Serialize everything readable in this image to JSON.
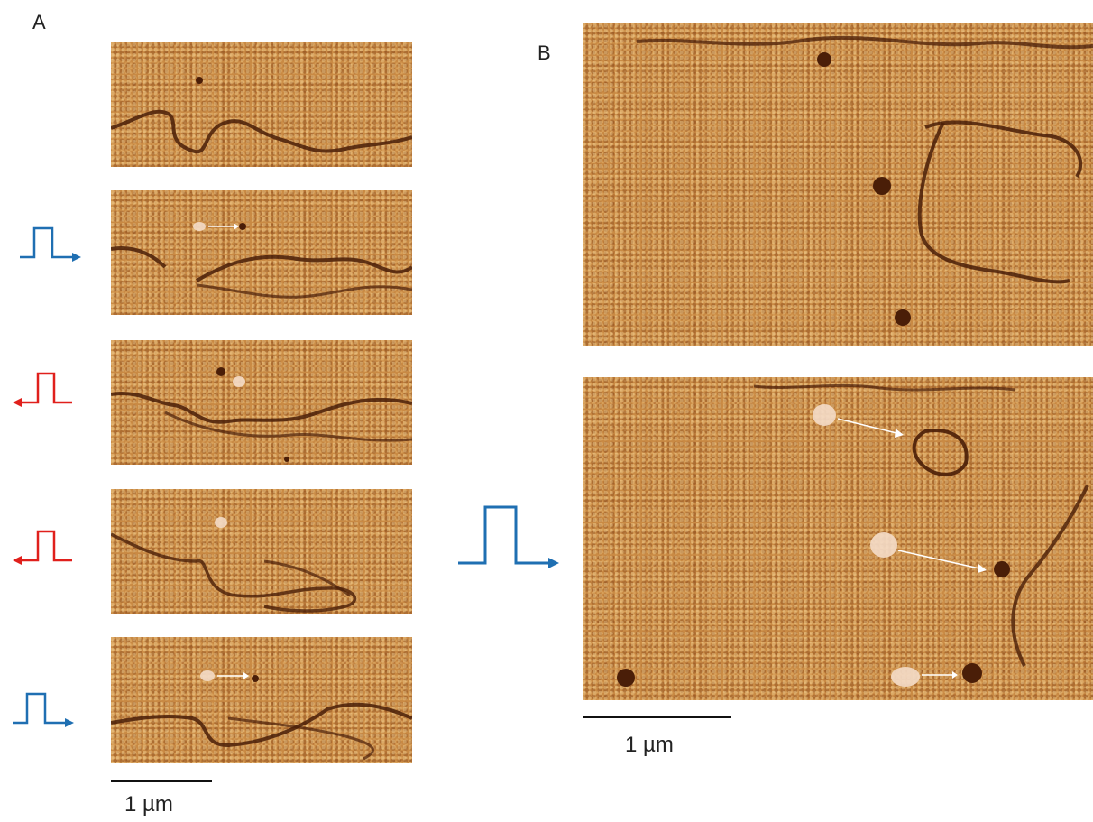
{
  "panels": {
    "a_label": "A",
    "b_label": "B"
  },
  "scalebars": {
    "a_label": "1 µm",
    "b_label": "1 µm"
  },
  "colors": {
    "pulse_forward": "#1f6fb2",
    "pulse_reverse": "#e0201c",
    "image_base": "#c98a44",
    "trace_dark": "#4a1e08",
    "arrow_white": "#ffffff"
  },
  "pulses_a": [
    {
      "direction": "forward",
      "icon": "arrow-right-icon"
    },
    {
      "direction": "reverse",
      "icon": "arrow-left-icon"
    },
    {
      "direction": "reverse",
      "icon": "arrow-left-icon"
    },
    {
      "direction": "forward",
      "icon": "arrow-right-icon"
    }
  ],
  "pulse_b": {
    "direction": "forward",
    "icon": "arrow-right-icon"
  }
}
